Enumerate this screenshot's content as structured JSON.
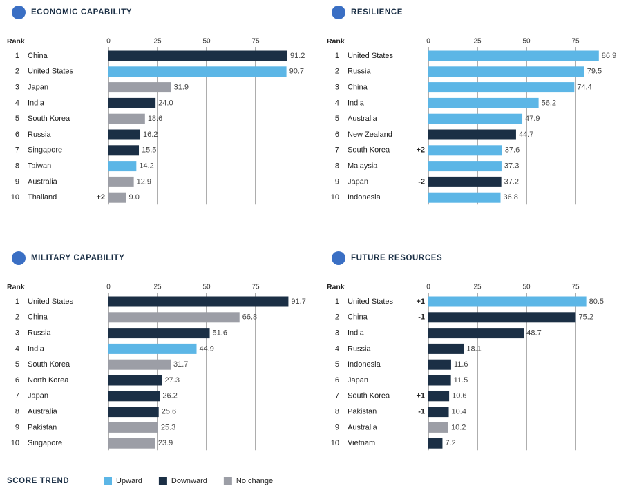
{
  "chart_data": [
    {
      "type": "bar",
      "title": "ECONOMIC CAPABILITY",
      "rank_label": "Rank",
      "ranks": [
        1,
        2,
        3,
        4,
        5,
        6,
        7,
        8,
        9,
        10
      ],
      "categories": [
        "China",
        "United States",
        "Japan",
        "India",
        "South Korea",
        "Russia",
        "Singapore",
        "Taiwan",
        "Australia",
        "Thailand"
      ],
      "values": [
        91.2,
        90.7,
        31.9,
        24.0,
        18.6,
        16.2,
        15.5,
        14.2,
        12.9,
        9.0
      ],
      "value_labels": [
        "91.2",
        "90.7",
        "31.9",
        "24.0",
        "18.6",
        "16.2",
        "15.5",
        "14.2",
        "12.9",
        "9.0"
      ],
      "colors": [
        "#1b2f45",
        "#5cb6e6",
        "#9c9ea6",
        "#1b2f45",
        "#9c9ea6",
        "#1b2f45",
        "#1b2f45",
        "#5cb6e6",
        "#9c9ea6",
        "#9c9ea6"
      ],
      "rank_changes": [
        null,
        null,
        null,
        null,
        null,
        null,
        null,
        null,
        null,
        "+2"
      ],
      "xlim": [
        0,
        100
      ],
      "xticks": [
        0,
        25,
        50,
        75
      ]
    },
    {
      "type": "bar",
      "title": "RESILIENCE",
      "rank_label": "Rank",
      "ranks": [
        1,
        2,
        3,
        4,
        5,
        6,
        7,
        8,
        9,
        10
      ],
      "categories": [
        "United States",
        "Russia",
        "China",
        "India",
        "Australia",
        "New Zealand",
        "South Korea",
        "Malaysia",
        "Japan",
        "Indonesia"
      ],
      "values": [
        86.9,
        79.5,
        74.4,
        56.2,
        47.9,
        44.7,
        37.6,
        37.3,
        37.2,
        36.8
      ],
      "value_labels": [
        "86.9",
        "79.5",
        "74.4",
        "56.2",
        "47.9",
        "44.7",
        "37.6",
        "37.3",
        "37.2",
        "36.8"
      ],
      "colors": [
        "#5cb6e6",
        "#5cb6e6",
        "#5cb6e6",
        "#5cb6e6",
        "#5cb6e6",
        "#1b2f45",
        "#5cb6e6",
        "#5cb6e6",
        "#1b2f45",
        "#5cb6e6"
      ],
      "rank_changes": [
        null,
        null,
        null,
        null,
        null,
        null,
        "+2",
        null,
        "-2",
        null
      ],
      "xlim": [
        0,
        100
      ],
      "xticks": [
        0,
        25,
        50,
        75
      ]
    },
    {
      "type": "bar",
      "title": "MILITARY CAPABILITY",
      "rank_label": "Rank",
      "ranks": [
        1,
        2,
        3,
        4,
        5,
        6,
        7,
        8,
        9,
        10
      ],
      "categories": [
        "United States",
        "China",
        "Russia",
        "India",
        "South Korea",
        "North Korea",
        "Japan",
        "Australia",
        "Pakistan",
        "Singapore"
      ],
      "values": [
        91.7,
        66.8,
        51.6,
        44.9,
        31.7,
        27.3,
        26.2,
        25.6,
        25.3,
        23.9
      ],
      "value_labels": [
        "91.7",
        "66.8",
        "51.6",
        "44.9",
        "31.7",
        "27.3",
        "26.2",
        "25.6",
        "25.3",
        "23.9"
      ],
      "colors": [
        "#1b2f45",
        "#9c9ea6",
        "#1b2f45",
        "#5cb6e6",
        "#9c9ea6",
        "#1b2f45",
        "#1b2f45",
        "#1b2f45",
        "#9c9ea6",
        "#9c9ea6"
      ],
      "rank_changes": [
        null,
        null,
        null,
        null,
        null,
        null,
        null,
        null,
        null,
        null
      ],
      "xlim": [
        0,
        100
      ],
      "xticks": [
        0,
        25,
        50,
        75
      ]
    },
    {
      "type": "bar",
      "title": "FUTURE RESOURCES",
      "rank_label": "Rank",
      "ranks": [
        1,
        2,
        3,
        4,
        5,
        6,
        7,
        8,
        9,
        10
      ],
      "categories": [
        "United States",
        "China",
        "India",
        "Russia",
        "Indonesia",
        "Japan",
        "South Korea",
        "Pakistan",
        "Australia",
        "Vietnam"
      ],
      "values": [
        80.5,
        75.2,
        48.7,
        18.1,
        11.6,
        11.5,
        10.6,
        10.4,
        10.2,
        7.2
      ],
      "value_labels": [
        "80.5",
        "75.2",
        "48.7",
        "18.1",
        "11.6",
        "11.5",
        "10.6",
        "10.4",
        "10.2",
        "7.2"
      ],
      "colors": [
        "#5cb6e6",
        "#1b2f45",
        "#1b2f45",
        "#1b2f45",
        "#1b2f45",
        "#1b2f45",
        "#1b2f45",
        "#1b2f45",
        "#9c9ea6",
        "#1b2f45"
      ],
      "rank_changes": [
        "+1",
        "-1",
        null,
        null,
        null,
        null,
        "+1",
        "-1",
        null,
        null
      ],
      "xlim": [
        0,
        100
      ],
      "xticks": [
        0,
        25,
        50,
        75
      ]
    }
  ],
  "legend": {
    "title": "SCORE TREND",
    "items": [
      {
        "name": "Upward",
        "color": "#5cb6e6"
      },
      {
        "name": "Downward",
        "color": "#1b2f45"
      },
      {
        "name": "No change",
        "color": "#9c9ea6"
      }
    ]
  }
}
